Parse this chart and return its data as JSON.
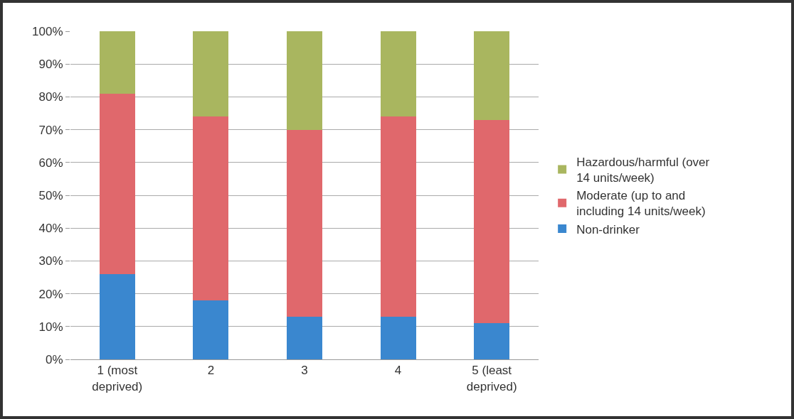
{
  "chart_data": {
    "type": "bar",
    "stacked": true,
    "categories": [
      "1 (most\ndeprived)",
      "2",
      "3",
      "4",
      "5 (least\ndeprived)"
    ],
    "series": [
      {
        "name": "Non-drinker",
        "color": "#3a87cf",
        "values": [
          26,
          18,
          13,
          13,
          11
        ]
      },
      {
        "name": "Moderate (up to and\nincluding 14 units/week)",
        "color": "#e0686c",
        "values": [
          55,
          56,
          57,
          61,
          62
        ]
      },
      {
        "name": "Hazardous/harmful (over\n14 units/week)",
        "color": "#a9b65f",
        "values": [
          19,
          26,
          30,
          26,
          27
        ]
      }
    ],
    "ylim": [
      0,
      100
    ],
    "yticks": [
      {
        "value": 0,
        "label": "0%"
      },
      {
        "value": 10,
        "label": "10%"
      },
      {
        "value": 20,
        "label": "20%"
      },
      {
        "value": 30,
        "label": "30%"
      },
      {
        "value": 40,
        "label": "40%"
      },
      {
        "value": 50,
        "label": "50%"
      },
      {
        "value": 60,
        "label": "60%"
      },
      {
        "value": 70,
        "label": "70%"
      },
      {
        "value": 80,
        "label": "80%"
      },
      {
        "value": 90,
        "label": "90%"
      },
      {
        "value": 100,
        "label": "100%"
      }
    ],
    "grid": "y",
    "legend": "right"
  }
}
